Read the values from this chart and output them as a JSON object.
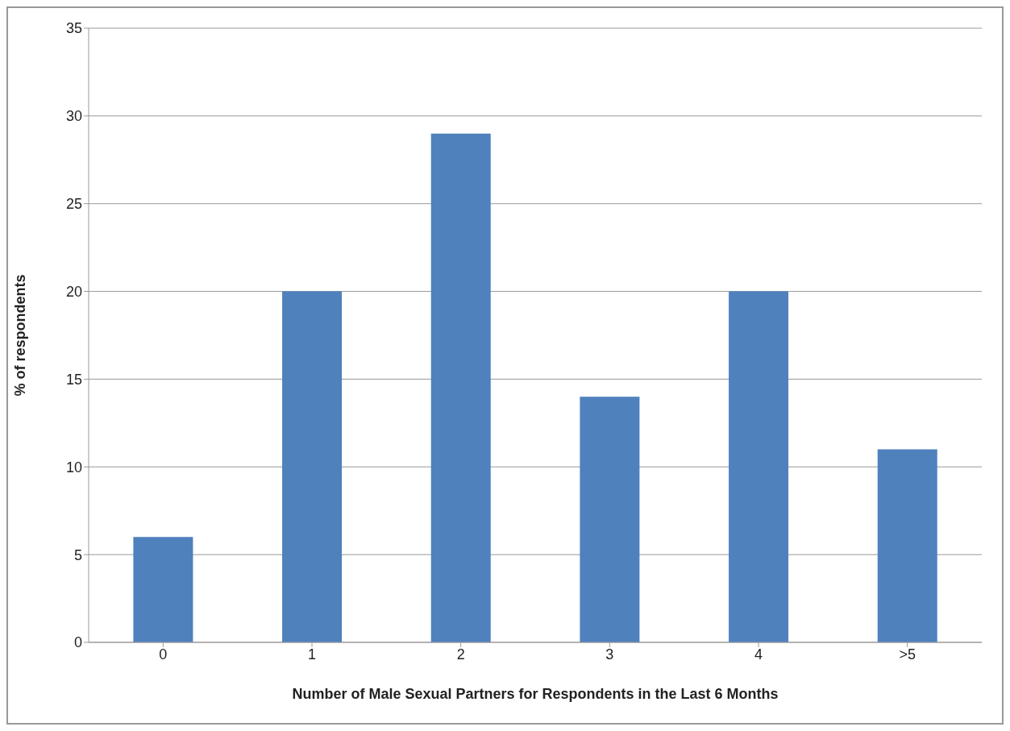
{
  "chart_data": {
    "type": "bar",
    "xlabel": "Number of Male Sexual Partners for Respondents in the Last 6 Months",
    "ylabel": "% of respondents",
    "categories": [
      "0",
      "1",
      "2",
      "3",
      "4",
      ">5"
    ],
    "values": [
      6,
      20,
      29,
      14,
      20,
      11
    ],
    "color": "#4f81bd",
    "ylim": [
      0,
      35
    ],
    "yticks": [
      0,
      5,
      10,
      15,
      20,
      25,
      30,
      35
    ],
    "grid": "y"
  }
}
